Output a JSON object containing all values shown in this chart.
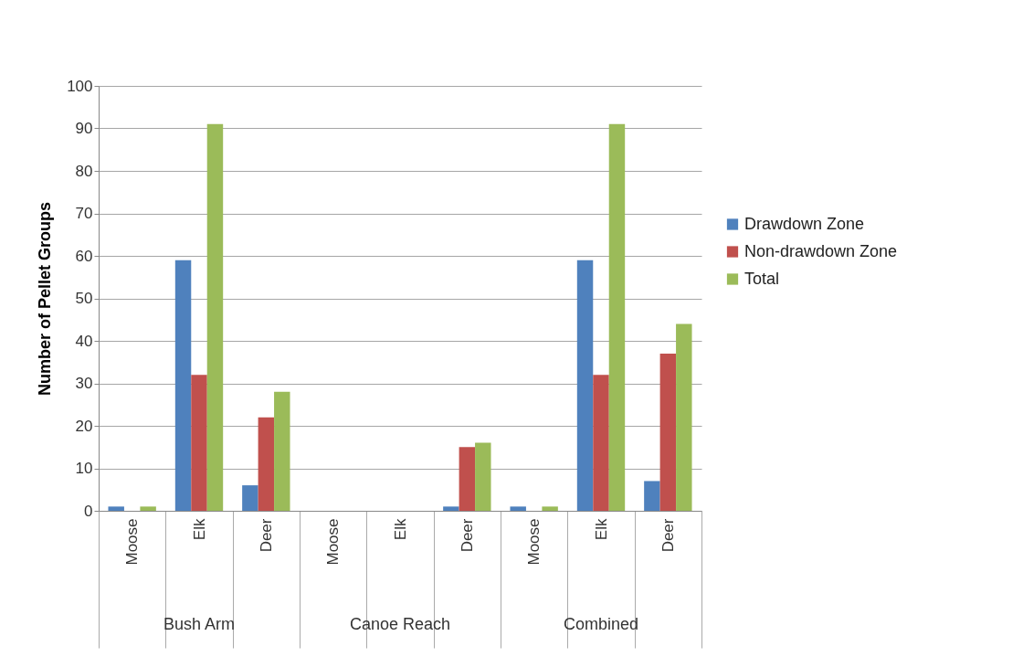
{
  "chart_data": {
    "type": "bar",
    "ylabel": "Number of Pellet Groups",
    "categories": [
      "Moose",
      "Elk",
      "Deer",
      "Moose",
      "Elk",
      "Deer",
      "Moose",
      "Elk",
      "Deer"
    ],
    "series": [
      {
        "name": "Drawdown Zone",
        "color": "#4f81bd",
        "values": [
          1,
          59,
          6,
          0,
          0,
          1,
          1,
          59,
          7
        ]
      },
      {
        "name": "Non-drawdown Zone",
        "color": "#c0504d",
        "values": [
          0,
          32,
          22,
          0,
          0,
          15,
          0,
          32,
          37
        ]
      },
      {
        "name": "Total",
        "color": "#9bbb59",
        "values": [
          1,
          91,
          28,
          0,
          0,
          16,
          1,
          91,
          44
        ]
      }
    ],
    "annotations": [
      "Bush Arm",
      "Canoe Reach",
      "Combined"
    ],
    "ylim": [
      0,
      100
    ],
    "yticks": [
      0,
      10,
      20,
      30,
      40,
      50,
      60,
      70,
      80,
      90,
      100
    ],
    "grid": "y",
    "legend": "right"
  }
}
